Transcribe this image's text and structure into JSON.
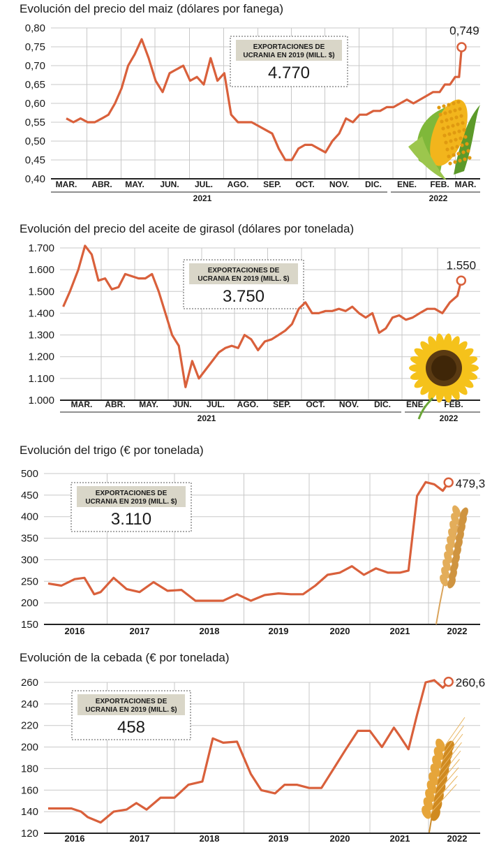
{
  "colors": {
    "line": "#d9603b",
    "grid": "#c8c8c8",
    "box_bg": "#d9d6c8",
    "axis": "#222222"
  },
  "chart_data": [
    {
      "type": "line",
      "title": "Evolución del precio del maiz (dólares por fanega)",
      "ylim": [
        0.4,
        0.8
      ],
      "y_ticks": [
        "0,80",
        "0,75",
        "0,70",
        "0,65",
        "0,60",
        "0,55",
        "0,50",
        "0,45",
        "0,40"
      ],
      "x_labels": [
        "MAR.",
        "ABR.",
        "MAY.",
        "JUN.",
        "JUL.",
        "AGO.",
        "SEP.",
        "OCT.",
        "NOV.",
        "DIC.",
        "ENE.",
        "FEB.",
        "MAR."
      ],
      "year_labels": [
        "2021",
        "2022"
      ],
      "last_label": "0,749",
      "export_box": {
        "title_line1": "EXPORTACIONES DE",
        "title_line2": "UCRANIA EN 2019 (MILL. $)",
        "value": "4.770"
      },
      "illustration": "corn-icon",
      "series": [
        {
          "x": [
            0,
            0.2,
            0.4,
            0.6,
            0.8,
            1.0,
            1.2,
            1.4,
            1.6,
            1.8,
            2.0,
            2.2,
            2.4,
            2.6,
            2.8,
            3.0,
            3.2,
            3.4,
            3.6,
            3.8,
            4.0,
            4.2,
            4.4,
            4.6,
            4.8,
            5.0,
            5.2,
            5.4,
            5.6,
            5.8,
            6.0,
            6.2,
            6.4,
            6.6,
            6.8,
            7.0,
            7.2,
            7.4,
            7.6,
            7.8,
            8.0,
            8.2,
            8.4,
            8.6,
            8.8,
            9.0,
            9.2,
            9.4,
            9.6,
            9.8,
            10.0,
            10.2,
            10.4,
            10.6,
            10.8,
            11.0,
            11.2,
            11.4,
            11.6,
            11.75,
            11.85
          ],
          "values": [
            0.56,
            0.55,
            0.56,
            0.55,
            0.55,
            0.56,
            0.57,
            0.6,
            0.64,
            0.7,
            0.73,
            0.77,
            0.72,
            0.66,
            0.63,
            0.68,
            0.69,
            0.7,
            0.66,
            0.67,
            0.65,
            0.72,
            0.66,
            0.68,
            0.57,
            0.55,
            0.55,
            0.55,
            0.54,
            0.53,
            0.52,
            0.48,
            0.45,
            0.45,
            0.48,
            0.49,
            0.49,
            0.48,
            0.47,
            0.5,
            0.52,
            0.56,
            0.55,
            0.57,
            0.57,
            0.58,
            0.58,
            0.59,
            0.59,
            0.6,
            0.61,
            0.6,
            0.61,
            0.62,
            0.63,
            0.63,
            0.65,
            0.65,
            0.67,
            0.67,
            0.749
          ]
        }
      ]
    },
    {
      "type": "line",
      "title": "Evolución del precio del aceite de girasol (dólares por tonelada)",
      "ylim": [
        1000,
        1700
      ],
      "y_ticks": [
        "1.700",
        "1.600",
        "1.500",
        "1.400",
        "1.300",
        "1.200",
        "1.100",
        "1.000"
      ],
      "x_labels": [
        "MAR.",
        "ABR.",
        "MAY.",
        "JUN.",
        "JUL.",
        "AGO.",
        "SEP.",
        "OCT.",
        "NOV.",
        "DIC.",
        "ENE.",
        "FEB."
      ],
      "year_labels": [
        "2021",
        "2022"
      ],
      "last_label": "1.550",
      "export_box": {
        "title_line1": "EXPORTACIONES DE",
        "title_line2": "UCRANIA EN 2019 (MILL. $)",
        "value": "3.750"
      },
      "illustration": "sunflower-icon",
      "series": [
        {
          "x": [
            -0.55,
            -0.35,
            -0.1,
            0.1,
            0.3,
            0.5,
            0.7,
            0.9,
            1.1,
            1.3,
            1.5,
            1.7,
            1.9,
            2.1,
            2.3,
            2.5,
            2.7,
            2.9,
            3.1,
            3.3,
            3.5,
            3.7,
            3.9,
            4.1,
            4.3,
            4.5,
            4.7,
            4.9,
            5.1,
            5.3,
            5.5,
            5.7,
            5.9,
            6.1,
            6.3,
            6.5,
            6.7,
            6.9,
            7.1,
            7.3,
            7.5,
            7.7,
            7.9,
            8.1,
            8.3,
            8.5,
            8.7,
            8.9,
            9.1,
            9.3,
            9.5,
            9.7,
            9.9,
            10.1,
            10.3,
            10.5,
            10.7,
            10.9,
            11.1,
            11.2
          ],
          "values": [
            1430,
            1500,
            1600,
            1710,
            1670,
            1550,
            1560,
            1510,
            1520,
            1580,
            1570,
            1560,
            1560,
            1580,
            1500,
            1400,
            1300,
            1250,
            1060,
            1180,
            1100,
            1140,
            1180,
            1220,
            1240,
            1250,
            1240,
            1300,
            1280,
            1230,
            1270,
            1280,
            1300,
            1320,
            1350,
            1420,
            1450,
            1400,
            1400,
            1410,
            1410,
            1420,
            1410,
            1430,
            1400,
            1380,
            1400,
            1310,
            1330,
            1380,
            1390,
            1370,
            1380,
            1400,
            1420,
            1420,
            1400,
            1450,
            1480,
            1550
          ]
        }
      ]
    },
    {
      "type": "line",
      "title": "Evolución del trigo (€ por tonelada)",
      "ylim": [
        150,
        500
      ],
      "y_ticks": [
        "500",
        "450",
        "400",
        "350",
        "300",
        "250",
        "200",
        "150"
      ],
      "x_labels": [
        "2016",
        "2017",
        "2018",
        "2019",
        "2020",
        "2021",
        "2022"
      ],
      "last_label": "479,3",
      "export_box": {
        "title_line1": "EXPORTACIONES DE",
        "title_line2": "UCRANIA EN 2019 (MILL. $)",
        "value": "3.110"
      },
      "illustration": "wheat-icon",
      "series": [
        {
          "x": [
            2015.6,
            2015.8,
            2016.0,
            2016.15,
            2016.3,
            2016.4,
            2016.6,
            2016.8,
            2017.0,
            2017.2,
            2017.4,
            2017.6,
            2017.8,
            2018.0,
            2018.2,
            2018.4,
            2018.6,
            2018.8,
            2019.0,
            2019.2,
            2019.4,
            2019.6,
            2019.8,
            2020.0,
            2020.2,
            2020.4,
            2020.6,
            2020.8,
            2021.0,
            2021.15,
            2021.3,
            2021.45,
            2021.6,
            2021.75,
            2021.85
          ],
          "values": [
            245,
            240,
            255,
            258,
            220,
            225,
            258,
            232,
            225,
            248,
            228,
            230,
            205,
            205,
            205,
            220,
            205,
            218,
            222,
            220,
            220,
            240,
            265,
            270,
            285,
            265,
            280,
            270,
            270,
            275,
            448,
            480,
            475,
            460,
            479.3
          ]
        }
      ]
    },
    {
      "type": "line",
      "title": "Evolución de la cebada (€ por tonelada)",
      "ylim": [
        120,
        260
      ],
      "y_ticks": [
        "260",
        "240",
        "220",
        "200",
        "180",
        "160",
        "140",
        "120"
      ],
      "x_labels": [
        "2016",
        "2017",
        "2018",
        "2019",
        "2020",
        "2021",
        "2022"
      ],
      "last_label": "260,6",
      "export_box": {
        "title_line1": "EXPORTACIONES DE",
        "title_line2": "UCRANIA EN 2019 (MILL. $)",
        "value": "458"
      },
      "illustration": "barley-icon",
      "series": [
        {
          "x": [
            2015.6,
            2015.8,
            2015.95,
            2016.1,
            2016.2,
            2016.4,
            2016.6,
            2016.8,
            2016.95,
            2017.1,
            2017.3,
            2017.5,
            2017.7,
            2017.9,
            2018.05,
            2018.2,
            2018.4,
            2018.6,
            2018.75,
            2018.95,
            2019.1,
            2019.3,
            2019.5,
            2019.7,
            2019.9,
            2020.1,
            2020.3,
            2020.5,
            2020.7,
            2020.9,
            2021.0,
            2021.15,
            2021.3,
            2021.45,
            2021.6,
            2021.75,
            2021.85
          ],
          "values": [
            143,
            143,
            143,
            140,
            135,
            130,
            140,
            142,
            148,
            142,
            153,
            153,
            165,
            168,
            208,
            204,
            205,
            175,
            160,
            157,
            165,
            165,
            162,
            162,
            180,
            198,
            215,
            215,
            200,
            218,
            210,
            198,
            230,
            260,
            262,
            255,
            260.6
          ]
        }
      ]
    }
  ]
}
